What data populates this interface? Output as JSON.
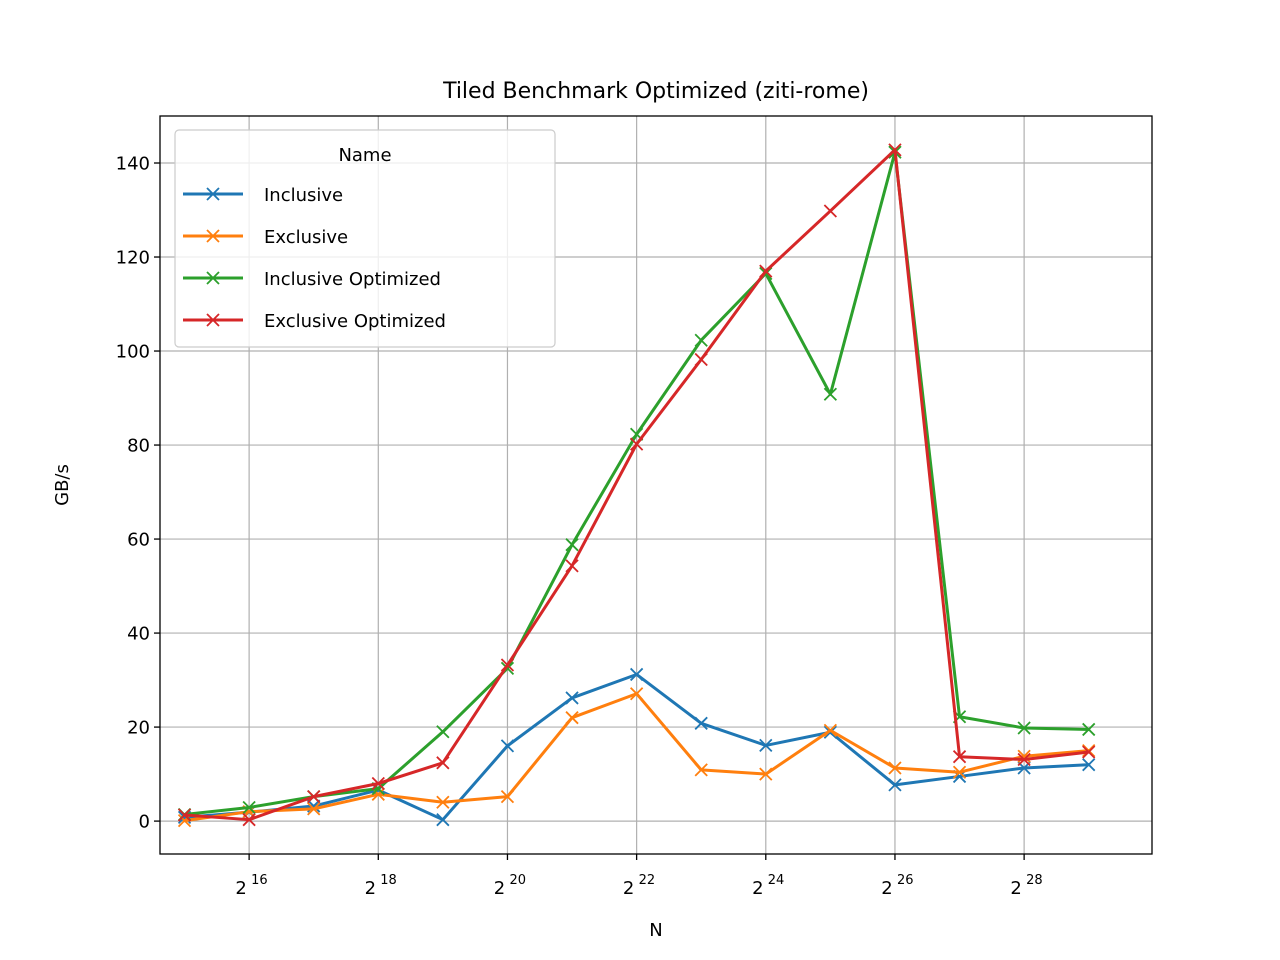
{
  "chart_data": {
    "type": "line",
    "title": "Tiled Benchmark Optimized (ziti-rome)",
    "xlabel": "N",
    "ylabel": "GB/s",
    "xscale": "log2",
    "x_exponents": [
      15,
      16,
      17,
      18,
      19,
      20,
      21,
      22,
      23,
      24,
      25,
      26,
      27,
      28,
      29
    ],
    "xlim_exponent": [
      14.62,
      29.98
    ],
    "xtick_base": "2",
    "xtick_exponents": [
      "16",
      "18",
      "20",
      "22",
      "24",
      "26",
      "28"
    ],
    "ylim": [
      -7,
      150
    ],
    "yticks": [
      "0",
      "20",
      "40",
      "60",
      "80",
      "100",
      "120",
      "140"
    ],
    "ytick_values": [
      0,
      20,
      40,
      60,
      80,
      100,
      120,
      140
    ],
    "grid": true,
    "legend": {
      "title": "Name",
      "position": "upper-left"
    },
    "marker": "x",
    "series": [
      {
        "name": "Inclusive",
        "color": "#1f77b4",
        "values": [
          0.8,
          1.9,
          3.2,
          6.6,
          0.3,
          16.0,
          26.2,
          31.2,
          20.8,
          16.1,
          18.9,
          7.7,
          9.5,
          11.3,
          12.0
        ]
      },
      {
        "name": "Exclusive",
        "color": "#ff7f0e",
        "values": [
          0.1,
          2.0,
          2.6,
          5.7,
          4.0,
          5.2,
          22.0,
          27.1,
          10.9,
          10.0,
          19.3,
          11.3,
          10.4,
          13.8,
          15.0
        ]
      },
      {
        "name": "Inclusive Optimized",
        "color": "#2ca02c",
        "values": [
          1.4,
          2.9,
          5.2,
          6.9,
          19.0,
          32.5,
          58.8,
          82.3,
          102.3,
          116.5,
          90.8,
          142.3,
          22.2,
          19.8,
          19.5
        ]
      },
      {
        "name": "Exclusive Optimized",
        "color": "#d62728",
        "values": [
          1.3,
          0.3,
          5.2,
          8.0,
          12.4,
          33.2,
          54.3,
          80.2,
          98.2,
          117.0,
          129.8,
          142.8,
          13.7,
          13.1,
          14.7
        ]
      }
    ]
  }
}
